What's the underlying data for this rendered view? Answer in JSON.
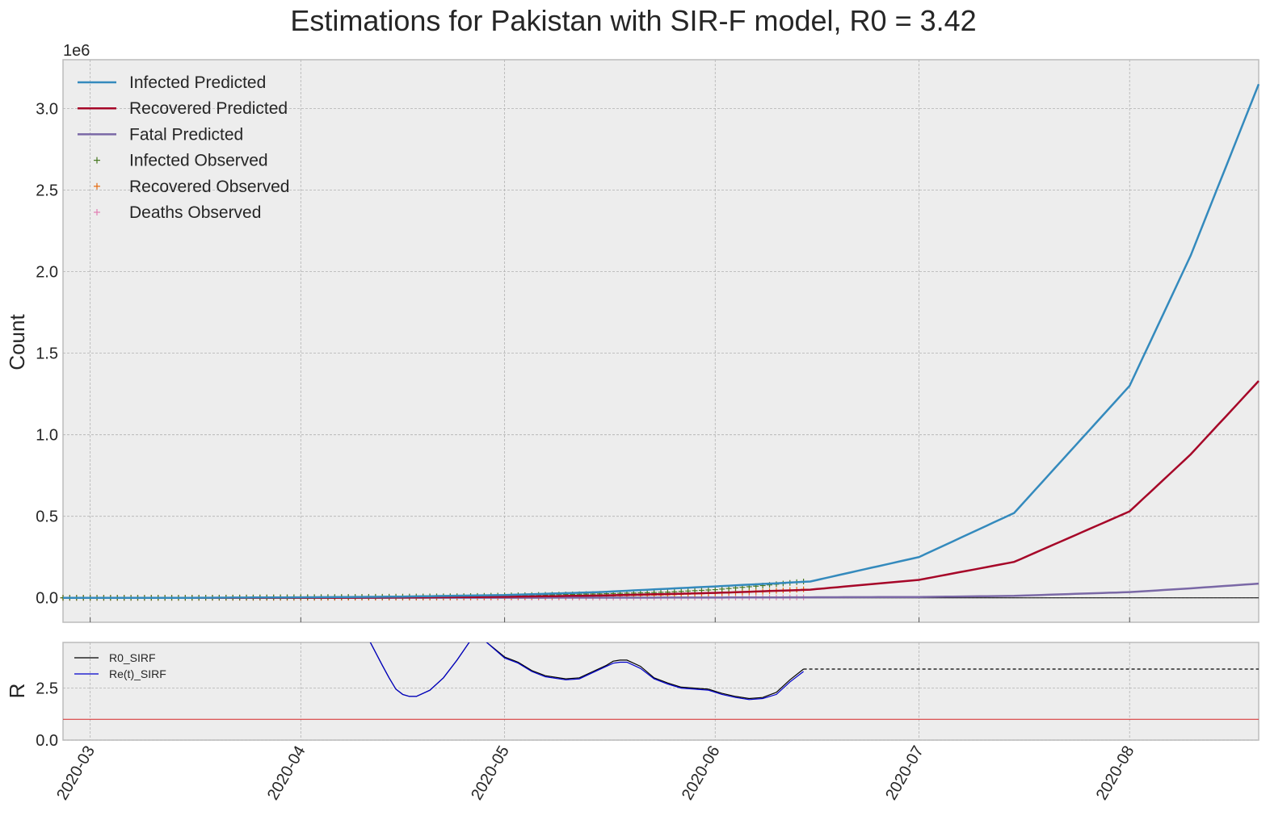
{
  "chart_data": [
    {
      "type": "line",
      "title": "Estimations for Pakistan with SIR-F model, R0 = 3.42",
      "ylabel": "Count",
      "y_offset_text": "1e6",
      "x_tick_labels": [
        "2020-03",
        "2020-04",
        "2020-05",
        "2020-06",
        "2020-07",
        "2020-08"
      ],
      "y_tick_labels": [
        "0.0",
        "0.5",
        "1.0",
        "1.5",
        "2.0",
        "2.5",
        "3.0"
      ],
      "xlim": [
        "2020-02-26",
        "2020-08-20"
      ],
      "ylim": [
        -0.15,
        3.3
      ],
      "y_scale": "1e6",
      "grid": true,
      "legend_position": "top-left",
      "colors": {
        "infected_predicted": "#348abd",
        "recovered_predicted": "#a60628",
        "fatal_predicted": "#7a68a6",
        "infected_observed": "#467821",
        "recovered_observed": "#e66a0e",
        "deaths_observed": "#e27fb3",
        "zero_line": "#000000"
      },
      "series": [
        {
          "name": "Infected Predicted",
          "style": "line",
          "x": [
            "2020-02-26",
            "2020-03-15",
            "2020-04-01",
            "2020-04-15",
            "2020-05-01",
            "2020-05-15",
            "2020-06-01",
            "2020-06-15",
            "2020-07-01",
            "2020-07-15",
            "2020-08-01",
            "2020-08-10",
            "2020-08-20"
          ],
          "values": [
            0.0,
            0.0,
            0.003,
            0.007,
            0.017,
            0.035,
            0.07,
            0.1,
            0.25,
            0.52,
            1.3,
            2.1,
            3.15
          ]
        },
        {
          "name": "Recovered Predicted",
          "style": "line",
          "x": [
            "2020-02-26",
            "2020-03-15",
            "2020-04-01",
            "2020-04-15",
            "2020-05-01",
            "2020-05-15",
            "2020-06-01",
            "2020-06-15",
            "2020-07-01",
            "2020-07-15",
            "2020-08-01",
            "2020-08-10",
            "2020-08-20"
          ],
          "values": [
            0.0,
            0.0,
            0.0,
            0.002,
            0.006,
            0.014,
            0.03,
            0.05,
            0.11,
            0.22,
            0.53,
            0.88,
            1.33
          ]
        },
        {
          "name": "Fatal Predicted",
          "style": "line",
          "x": [
            "2020-02-26",
            "2020-04-01",
            "2020-05-01",
            "2020-06-01",
            "2020-07-01",
            "2020-07-15",
            "2020-08-01",
            "2020-08-10",
            "2020-08-20"
          ],
          "values": [
            0.0,
            0.0,
            0.0005,
            0.0015,
            0.005,
            0.012,
            0.035,
            0.058,
            0.087
          ]
        },
        {
          "name": "Infected Observed",
          "style": "markers",
          "x": [
            "2020-02-26",
            "2020-03-15",
            "2020-04-01",
            "2020-04-15",
            "2020-04-25",
            "2020-05-05",
            "2020-05-15",
            "2020-05-25",
            "2020-06-01",
            "2020-06-08",
            "2020-06-14"
          ],
          "values": [
            0.0,
            0.0,
            0.004,
            0.007,
            0.01,
            0.017,
            0.024,
            0.035,
            0.05,
            0.075,
            0.1
          ]
        },
        {
          "name": "Recovered Observed",
          "style": "markers",
          "x": [
            "2020-02-26",
            "2020-04-01",
            "2020-04-20",
            "2020-05-01",
            "2020-05-15",
            "2020-05-25",
            "2020-06-01",
            "2020-06-08",
            "2020-06-14"
          ],
          "values": [
            0.0,
            0.0,
            0.002,
            0.005,
            0.01,
            0.018,
            0.028,
            0.038,
            0.052
          ]
        },
        {
          "name": "Deaths Observed",
          "style": "markers",
          "x": [
            "2020-02-26",
            "2020-05-01",
            "2020-06-01",
            "2020-06-14"
          ],
          "values": [
            0.0,
            0.0003,
            0.0012,
            0.0025
          ]
        }
      ]
    },
    {
      "type": "line",
      "ylabel": "R",
      "y_tick_labels": [
        "0.0",
        "2.5"
      ],
      "xlim": [
        "2020-02-26",
        "2020-08-20"
      ],
      "ylim": [
        0,
        4.7
      ],
      "grid": true,
      "legend_position": "top-left",
      "colors": {
        "r0": "#000000",
        "ret": "#0000cc",
        "threshold": "#d62728"
      },
      "threshold": 1.0,
      "series": [
        {
          "name": "R0_SIRF",
          "x": [
            "2020-04-11",
            "2020-04-13",
            "2020-04-14",
            "2020-04-15",
            "2020-04-16",
            "2020-04-17",
            "2020-04-18",
            "2020-04-20",
            "2020-04-22",
            "2020-04-24",
            "2020-04-26",
            "2020-04-28",
            "2020-05-01",
            "2020-05-03",
            "2020-05-05",
            "2020-05-07",
            "2020-05-10",
            "2020-05-12",
            "2020-05-14",
            "2020-05-16",
            "2020-05-17",
            "2020-05-18",
            "2020-05-19",
            "2020-05-21",
            "2020-05-23",
            "2020-05-25",
            "2020-05-27",
            "2020-05-29",
            "2020-05-31",
            "2020-06-02",
            "2020-06-04",
            "2020-06-06",
            "2020-06-08",
            "2020-06-10",
            "2020-06-12",
            "2020-06-14"
          ],
          "values": [
            4.85,
            3.6,
            3.0,
            2.45,
            2.2,
            2.1,
            2.1,
            2.4,
            3.0,
            3.85,
            4.8,
            4.8,
            4.0,
            3.75,
            3.35,
            3.1,
            2.95,
            3.0,
            3.3,
            3.6,
            3.8,
            3.85,
            3.85,
            3.55,
            3.0,
            2.75,
            2.55,
            2.5,
            2.45,
            2.25,
            2.1,
            2.0,
            2.05,
            2.3,
            2.9,
            3.42
          ]
        },
        {
          "name": "Re(t)_SIRF",
          "x": [
            "2020-04-11",
            "2020-04-13",
            "2020-04-14",
            "2020-04-15",
            "2020-04-16",
            "2020-04-17",
            "2020-04-18",
            "2020-04-20",
            "2020-04-22",
            "2020-04-24",
            "2020-04-26",
            "2020-04-28",
            "2020-05-01",
            "2020-05-03",
            "2020-05-05",
            "2020-05-07",
            "2020-05-10",
            "2020-05-12",
            "2020-05-14",
            "2020-05-16",
            "2020-05-17",
            "2020-05-18",
            "2020-05-19",
            "2020-05-21",
            "2020-05-23",
            "2020-05-25",
            "2020-05-27",
            "2020-05-29",
            "2020-05-31",
            "2020-06-02",
            "2020-06-04",
            "2020-06-06",
            "2020-06-08",
            "2020-06-10",
            "2020-06-12",
            "2020-06-14"
          ],
          "values": [
            4.85,
            3.6,
            3.0,
            2.45,
            2.2,
            2.1,
            2.1,
            2.4,
            3.0,
            3.85,
            4.8,
            4.8,
            3.95,
            3.7,
            3.3,
            3.05,
            2.9,
            2.95,
            3.25,
            3.55,
            3.7,
            3.75,
            3.75,
            3.45,
            2.95,
            2.7,
            2.5,
            2.45,
            2.4,
            2.2,
            2.05,
            1.95,
            2.0,
            2.2,
            2.8,
            3.3
          ]
        },
        {
          "name": "R0_SIRF",
          "style": "dashed",
          "x": [
            "2020-06-14",
            "2020-08-20"
          ],
          "values": [
            3.42,
            3.42
          ]
        }
      ]
    }
  ]
}
